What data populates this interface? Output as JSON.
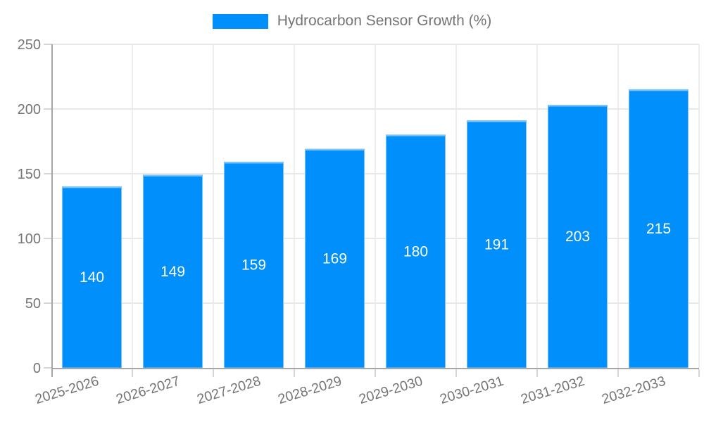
{
  "legend": {
    "position": "top"
  },
  "chart_data": {
    "type": "bar",
    "title": "Hydrocarbon Sensor Growth (%)",
    "categories": [
      "2025-2026",
      "2026-2027",
      "2027-2028",
      "2028-2029",
      "2029-2030",
      "2030-2031",
      "2031-2032",
      "2032-2033"
    ],
    "series": [
      {
        "name": "Hydrocarbon Sensor Growth (%)",
        "values": [
          140,
          149,
          159,
          169,
          180,
          191,
          203,
          215
        ]
      }
    ],
    "value_labels": [
      "140",
      "149",
      "159",
      "169",
      "180",
      "191",
      "203",
      "215"
    ],
    "xlabel": "",
    "ylabel": "",
    "ylim": [
      0,
      250
    ],
    "ytick_step": 50,
    "ytick_labels": [
      "0",
      "50",
      "100",
      "150",
      "200",
      "250"
    ],
    "grid": true,
    "legend_position": "top",
    "colors": {
      "bar": "#008FFB",
      "bar_top_edge": "#7cc3fb",
      "value_label": "#ffffff",
      "axis_label": "#757575",
      "axis_line": "#a6a6a6",
      "grid_line_h": "#e8e8e8",
      "grid_line_v": "#ededed",
      "tick": "#d6d6d6"
    }
  }
}
